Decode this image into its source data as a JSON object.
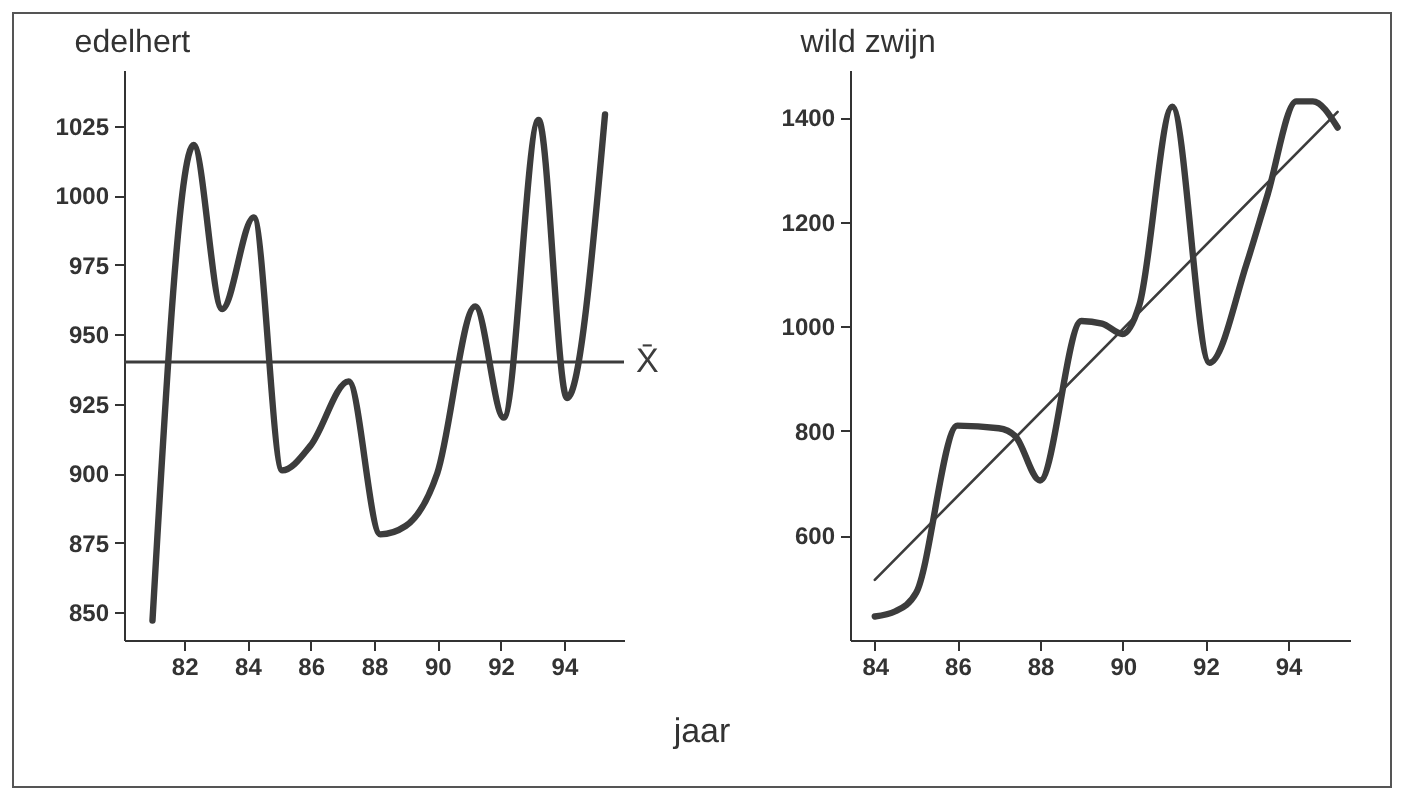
{
  "chart_data": [
    {
      "type": "line",
      "title": "edelhert",
      "xlabel": "jaar",
      "xlim": [
        80.1,
        95.9
      ],
      "xticks": [
        82,
        84,
        86,
        88,
        90,
        92,
        94
      ],
      "ylim": [
        840,
        1045
      ],
      "yticks": [
        850,
        875,
        900,
        925,
        950,
        975,
        1000,
        1025
      ],
      "grid": false,
      "marker": "none",
      "line_style": "solid",
      "series": [
        {
          "color": "#3c3c3c",
          "x": [
            81,
            82.3,
            83.2,
            84.2,
            85.1,
            86,
            87.2,
            88.2,
            89,
            90,
            91.2,
            92.1,
            93.2,
            94.1,
            95.3
          ],
          "values": [
            847,
            1018,
            959,
            992,
            901,
            910,
            933,
            878,
            881,
            900,
            960,
            920,
            1027,
            927,
            1029
          ]
        }
      ],
      "ref_lines": [
        {
          "axis": "y",
          "value": 940,
          "label": "X̄",
          "color": "#3c3c3c"
        }
      ]
    },
    {
      "type": "line",
      "title": "wild zwijn",
      "xlim": [
        83.4,
        95.5
      ],
      "xticks": [
        84,
        86,
        88,
        90,
        92,
        94
      ],
      "ylim": [
        400,
        1490
      ],
      "yticks": [
        600,
        800,
        1000,
        1200,
        1400
      ],
      "grid": false,
      "marker": "none",
      "line_style": "solid",
      "series": [
        {
          "color": "#3c3c3c",
          "x": [
            84,
            84.5,
            85,
            86,
            87,
            87.4,
            88,
            89,
            89.5,
            90,
            90.4,
            91.2,
            92.1,
            93,
            93.5,
            94.2,
            94.6,
            95.2
          ],
          "values": [
            445,
            455,
            490,
            810,
            805,
            790,
            705,
            1010,
            1005,
            985,
            1040,
            1420,
            930,
            1120,
            1250,
            1430,
            1430,
            1380
          ]
        },
        {
          "type": "line",
          "color": "#3c3c3c",
          "x": [
            84,
            95.2
          ],
          "values": [
            515,
            1410
          ]
        }
      ]
    }
  ]
}
